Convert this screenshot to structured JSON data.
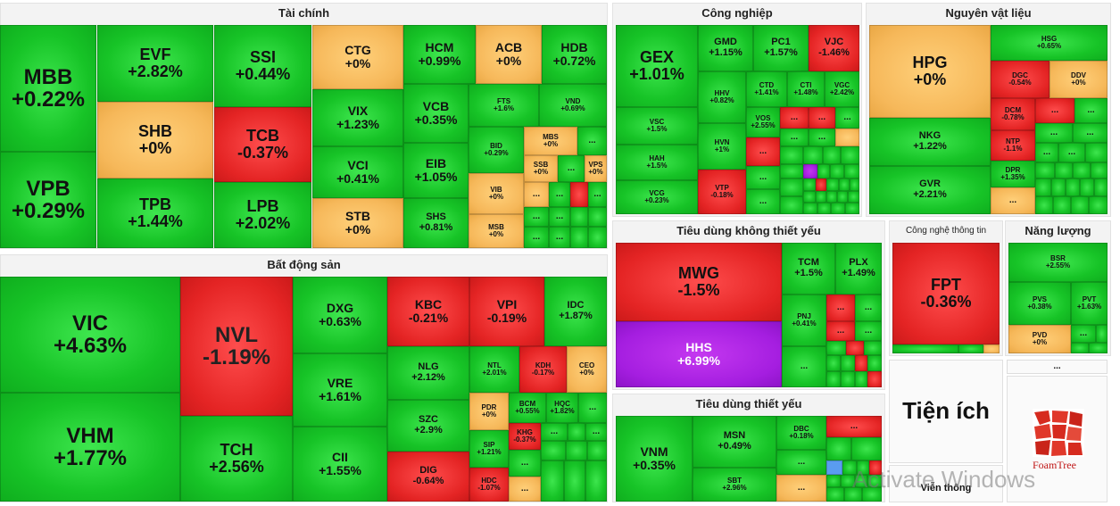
{
  "sectors": {
    "finance": "Tài chính",
    "real_estate": "Bất động sản",
    "industrial": "Công nghiệp",
    "materials": "Nguyên vật liệu",
    "discretionary": "Tiêu dùng không thiết yếu",
    "staples": "Tiêu dùng thiết yếu",
    "it": "Công nghệ thông tin",
    "energy": "Năng lượng",
    "utilities": "Tiện ích",
    "telecom": "Viễn thông"
  },
  "more": "...",
  "tickers": {
    "MBB": {
      "sym": "MBB",
      "chg": "+0.22%"
    },
    "VPB": {
      "sym": "VPB",
      "chg": "+0.29%"
    },
    "EVF": {
      "sym": "EVF",
      "chg": "+2.82%"
    },
    "SHB": {
      "sym": "SHB",
      "chg": "+0%"
    },
    "TPB": {
      "sym": "TPB",
      "chg": "+1.44%"
    },
    "SSI": {
      "sym": "SSI",
      "chg": "+0.44%"
    },
    "TCB": {
      "sym": "TCB",
      "chg": "-0.37%"
    },
    "LPB": {
      "sym": "LPB",
      "chg": "+2.02%"
    },
    "CTG": {
      "sym": "CTG",
      "chg": "+0%"
    },
    "VIX": {
      "sym": "VIX",
      "chg": "+1.23%"
    },
    "VCI": {
      "sym": "VCI",
      "chg": "+0.41%"
    },
    "STB": {
      "sym": "STB",
      "chg": "+0%"
    },
    "HCM": {
      "sym": "HCM",
      "chg": "+0.99%"
    },
    "VCB": {
      "sym": "VCB",
      "chg": "+0.35%"
    },
    "EIB": {
      "sym": "EIB",
      "chg": "+1.05%"
    },
    "SHS": {
      "sym": "SHS",
      "chg": "+0.81%"
    },
    "ACB": {
      "sym": "ACB",
      "chg": "+0%"
    },
    "HDB": {
      "sym": "HDB",
      "chg": "+0.72%"
    },
    "FTS": {
      "sym": "FTS",
      "chg": "+1.6%"
    },
    "VND": {
      "sym": "VND",
      "chg": "+0.69%"
    },
    "BID": {
      "sym": "BID",
      "chg": "+0.29%"
    },
    "VIB": {
      "sym": "VIB",
      "chg": "+0%"
    },
    "MSB": {
      "sym": "MSB",
      "chg": "+0%"
    },
    "MBS": {
      "sym": "MBS",
      "chg": "+0%"
    },
    "SSB": {
      "sym": "SSB",
      "chg": "+0%"
    },
    "VPS": {
      "sym": "VPS",
      "chg": "+0%"
    },
    "VIC": {
      "sym": "VIC",
      "chg": "+4.63%"
    },
    "VHM": {
      "sym": "VHM",
      "chg": "+1.77%"
    },
    "NVL": {
      "sym": "NVL",
      "chg": "-1.19%"
    },
    "TCH": {
      "sym": "TCH",
      "chg": "+2.56%"
    },
    "DXG": {
      "sym": "DXG",
      "chg": "+0.63%"
    },
    "VRE": {
      "sym": "VRE",
      "chg": "+1.61%"
    },
    "CII": {
      "sym": "CII",
      "chg": "+1.55%"
    },
    "KBC": {
      "sym": "KBC",
      "chg": "-0.21%"
    },
    "NLG": {
      "sym": "NLG",
      "chg": "+2.12%"
    },
    "SZC": {
      "sym": "SZC",
      "chg": "+2.9%"
    },
    "DIG": {
      "sym": "DIG",
      "chg": "-0.64%"
    },
    "VPI": {
      "sym": "VPI",
      "chg": "-0.19%"
    },
    "IDC": {
      "sym": "IDC",
      "chg": "+1.87%"
    },
    "NTL": {
      "sym": "NTL",
      "chg": "+2.01%"
    },
    "KDH": {
      "sym": "KDH",
      "chg": "-0.17%"
    },
    "CEO": {
      "sym": "CEO",
      "chg": "+0%"
    },
    "PDR": {
      "sym": "PDR",
      "chg": "+0%"
    },
    "SIP": {
      "sym": "SIP",
      "chg": "+1.21%"
    },
    "HDC": {
      "sym": "HDC",
      "chg": "-1.07%"
    },
    "BCM": {
      "sym": "BCM",
      "chg": "+0.55%"
    },
    "HQC": {
      "sym": "HQC",
      "chg": "+1.82%"
    },
    "KHG": {
      "sym": "KHG",
      "chg": "-0.37%"
    },
    "GEX": {
      "sym": "GEX",
      "chg": "+1.01%"
    },
    "VSC": {
      "sym": "VSC",
      "chg": "+1.5%"
    },
    "HAH": {
      "sym": "HAH",
      "chg": "+1.5%"
    },
    "VCG": {
      "sym": "VCG",
      "chg": "+0.23%"
    },
    "GMD": {
      "sym": "GMD",
      "chg": "+1.15%"
    },
    "PC1": {
      "sym": "PC1",
      "chg": "+1.57%"
    },
    "VJC": {
      "sym": "VJC",
      "chg": "-1.46%"
    },
    "HHV": {
      "sym": "HHV",
      "chg": "+0.82%"
    },
    "HVN": {
      "sym": "HVN",
      "chg": "+1%"
    },
    "VTP": {
      "sym": "VTP",
      "chg": "-0.18%"
    },
    "CTD": {
      "sym": "CTD",
      "chg": "+1.41%"
    },
    "CTI": {
      "sym": "CTI",
      "chg": "+1.48%"
    },
    "VGC": {
      "sym": "VGC",
      "chg": "+2.42%"
    },
    "VOS": {
      "sym": "VOS",
      "chg": "+2.55%"
    },
    "HPG": {
      "sym": "HPG",
      "chg": "+0%"
    },
    "NKG": {
      "sym": "NKG",
      "chg": "+1.22%"
    },
    "GVR": {
      "sym": "GVR",
      "chg": "+2.21%"
    },
    "HSG": {
      "sym": "HSG",
      "chg": "+0.65%"
    },
    "DGC": {
      "sym": "DGC",
      "chg": "-0.54%"
    },
    "DDV": {
      "sym": "DDV",
      "chg": "+0%"
    },
    "DCM": {
      "sym": "DCM",
      "chg": "-0.78%"
    },
    "NTP": {
      "sym": "NTP",
      "chg": "-1.1%"
    },
    "DPR": {
      "sym": "DPR",
      "chg": "+1.35%"
    },
    "MWG": {
      "sym": "MWG",
      "chg": "-1.5%"
    },
    "HHS": {
      "sym": "HHS",
      "chg": "+6.99%"
    },
    "TCM": {
      "sym": "TCM",
      "chg": "+1.5%"
    },
    "PLX": {
      "sym": "PLX",
      "chg": "+1.49%"
    },
    "PNJ": {
      "sym": "PNJ",
      "chg": "+0.41%"
    },
    "VNM": {
      "sym": "VNM",
      "chg": "+0.35%"
    },
    "MSN": {
      "sym": "MSN",
      "chg": "+0.49%"
    },
    "SBT": {
      "sym": "SBT",
      "chg": "+2.96%"
    },
    "DBC": {
      "sym": "DBC",
      "chg": "+0.18%"
    },
    "FPT": {
      "sym": "FPT",
      "chg": "-0.36%"
    },
    "BSR": {
      "sym": "BSR",
      "chg": "+2.55%"
    },
    "PVS": {
      "sym": "PVS",
      "chg": "+0.38%"
    },
    "PVT": {
      "sym": "PVT",
      "chg": "+1.63%"
    },
    "PVD": {
      "sym": "PVD",
      "chg": "+0%"
    }
  },
  "branding": {
    "logo_text": "FoamTree"
  },
  "system": {
    "watermark": "Activate Windows"
  },
  "colors": {
    "up": "#17c427",
    "down": "#e42424",
    "flat": "#f6b85a",
    "ceiling": "#a51ee0"
  }
}
